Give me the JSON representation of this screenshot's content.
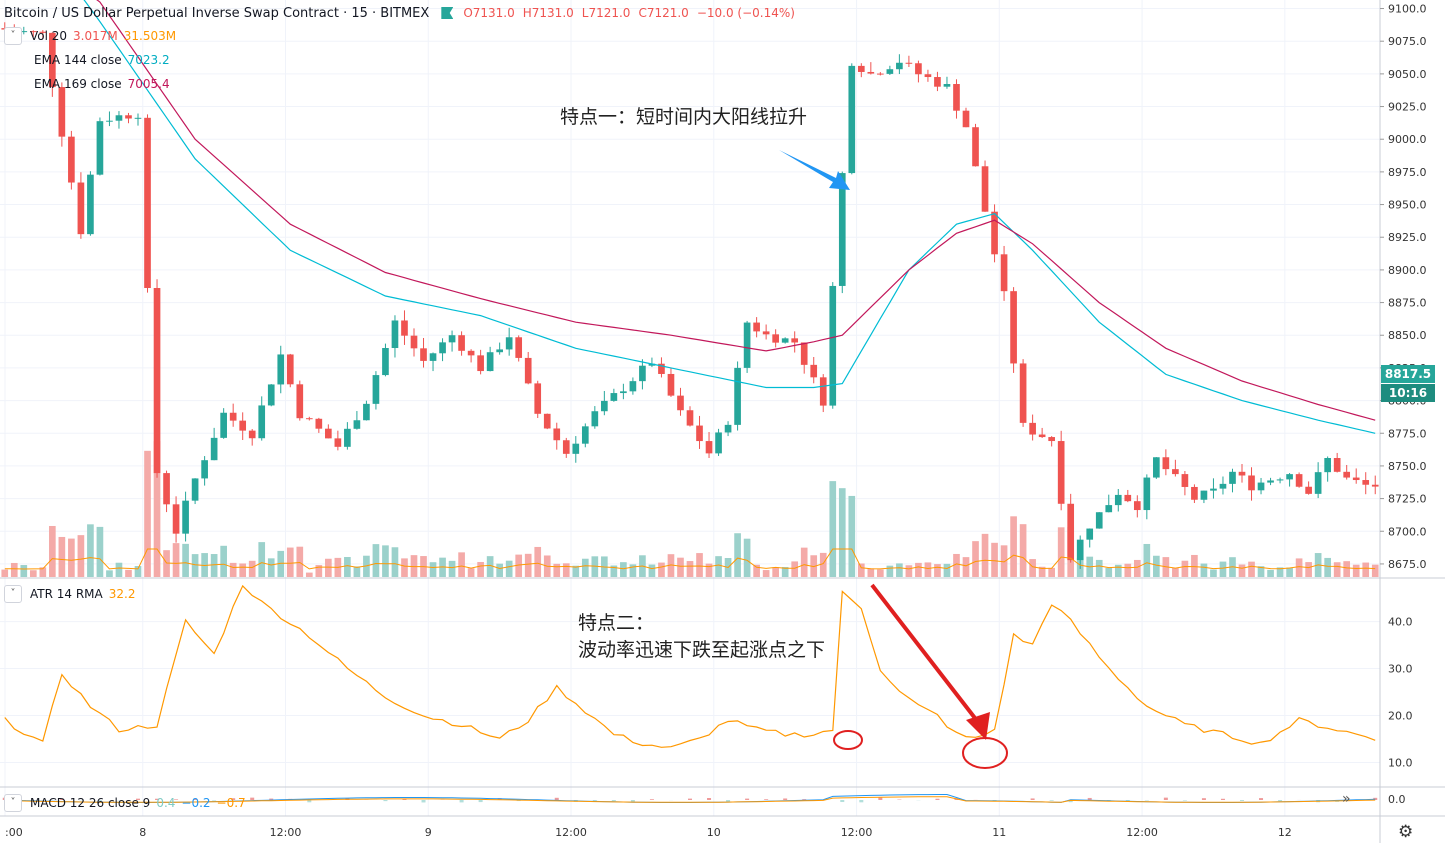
{
  "header": {
    "symbol_title": "Bitcoin / US Dollar Perpetual Inverse Swap Contract · 15 · BITMEX",
    "ohlc": {
      "o": "O7131.0",
      "h": "H7131.0",
      "l": "L7121.0",
      "c": "C7121.0",
      "chg": "−10.0 (−0.14%)"
    }
  },
  "legends": {
    "vol": {
      "name": "Vol 20",
      "v1": "3.017M",
      "v2": "31.503M",
      "c1": "#ef5350",
      "c2": "#ff9800"
    },
    "ema144": {
      "name": "EMA 144 close",
      "value": "7023.2",
      "color": "#00bcd4"
    },
    "ema169": {
      "name": "EMA 169 close",
      "value": "7005.4",
      "color": "#c2185b"
    },
    "atr": {
      "name": "ATR 14 RMA",
      "value": "32.2",
      "color": "#ff9800"
    },
    "macd": {
      "name": "MACD 12 26 close 9",
      "v1": "0.4",
      "v2": "−0.2",
      "v3": "−0.7",
      "c1": "#80cbc4",
      "c2": "#2196f3",
      "c3": "#ff9800"
    }
  },
  "annotations": {
    "note1": "特点一：短时间内大阳线拉升",
    "note2_l1": "特点二：",
    "note2_l2": "波动率迅速下跌至起涨点之下"
  },
  "price_tags": {
    "last_price": "8817.5",
    "countdown": "10:16"
  },
  "colors": {
    "up": "#26a69a",
    "down": "#ef5350",
    "ema144": "#00bcd4",
    "ema169": "#c2185b",
    "atr": "#ff9800",
    "annot_arrow_blue": "#2196f3",
    "annot_arrow_red": "#e02020"
  },
  "chart_data": [
    {
      "type": "candlestick",
      "title": "Bitcoin / US Dollar Perpetual Inverse Swap Contract",
      "interval": "15",
      "price_ticks": [
        "9100.0",
        "9075.0",
        "9050.0",
        "9025.0",
        "9000.0",
        "8975.0",
        "8950.0",
        "8925.0",
        "8900.0",
        "8875.0",
        "8850.0",
        "8825.0",
        "8800.0",
        "8775.0",
        "8750.0",
        "8725.0",
        "8700.0",
        "8675.0"
      ],
      "ylim": [
        8665,
        9105
      ],
      "time_ticks": [
        ":00",
        "8",
        "12:00",
        "9",
        "12:00",
        "10",
        "12:00",
        "11",
        "12:00",
        "12"
      ],
      "price_path": [
        [
          0,
          9085
        ],
        [
          5,
          9080
        ],
        [
          9,
          8930
        ],
        [
          11,
          9015
        ],
        [
          15,
          9020
        ],
        [
          17,
          8745
        ],
        [
          19,
          8700
        ],
        [
          21,
          8740
        ],
        [
          24,
          8790
        ],
        [
          27,
          8775
        ],
        [
          30,
          8835
        ],
        [
          32,
          8790
        ],
        [
          36,
          8765
        ],
        [
          39,
          8800
        ],
        [
          42,
          8860
        ],
        [
          45,
          8830
        ],
        [
          48,
          8850
        ],
        [
          51,
          8825
        ],
        [
          54,
          8850
        ],
        [
          57,
          8790
        ],
        [
          60,
          8760
        ],
        [
          63,
          8790
        ],
        [
          66,
          8810
        ],
        [
          69,
          8830
        ],
        [
          72,
          8790
        ],
        [
          75,
          8760
        ],
        [
          77,
          8785
        ],
        [
          79,
          8860
        ],
        [
          81,
          8850
        ],
        [
          84,
          8845
        ],
        [
          87,
          8800
        ],
        [
          90,
          9060
        ],
        [
          92,
          9050
        ],
        [
          95,
          9060
        ],
        [
          97,
          9050
        ],
        [
          100,
          9040
        ],
        [
          102,
          9010
        ],
        [
          104,
          8945
        ],
        [
          106,
          8880
        ],
        [
          108,
          8780
        ],
        [
          111,
          8770
        ],
        [
          113,
          8680
        ],
        [
          115,
          8705
        ],
        [
          118,
          8730
        ],
        [
          120,
          8720
        ],
        [
          122,
          8755
        ],
        [
          124,
          8740
        ],
        [
          126,
          8725
        ],
        [
          128,
          8730
        ],
        [
          130,
          8745
        ],
        [
          132,
          8735
        ],
        [
          134,
          8740
        ],
        [
          136,
          8745
        ],
        [
          138,
          8730
        ],
        [
          140,
          8755
        ],
        [
          142,
          8740
        ],
        [
          144,
          8735
        ]
      ],
      "ema144_path": [
        [
          4,
          9150
        ],
        [
          10,
          9090
        ],
        [
          20,
          8985
        ],
        [
          30,
          8915
        ],
        [
          40,
          8880
        ],
        [
          50,
          8865
        ],
        [
          60,
          8840
        ],
        [
          70,
          8825
        ],
        [
          80,
          8810
        ],
        [
          85,
          8810
        ],
        [
          88,
          8813
        ],
        [
          95,
          8900
        ],
        [
          100,
          8935
        ],
        [
          104,
          8943
        ],
        [
          108,
          8915
        ],
        [
          115,
          8860
        ],
        [
          122,
          8820
        ],
        [
          130,
          8800
        ],
        [
          138,
          8785
        ],
        [
          144,
          8775
        ]
      ],
      "ema169_path": [
        [
          4,
          9160
        ],
        [
          10,
          9105
        ],
        [
          20,
          9000
        ],
        [
          30,
          8935
        ],
        [
          40,
          8898
        ],
        [
          50,
          8878
        ],
        [
          60,
          8860
        ],
        [
          70,
          8850
        ],
        [
          80,
          8838
        ],
        [
          85,
          8845
        ],
        [
          88,
          8850
        ],
        [
          95,
          8900
        ],
        [
          100,
          8928
        ],
        [
          104,
          8938
        ],
        [
          108,
          8920
        ],
        [
          115,
          8875
        ],
        [
          122,
          8840
        ],
        [
          130,
          8815
        ],
        [
          138,
          8797
        ],
        [
          144,
          8785
        ]
      ],
      "volume_note": "volume histogram at bottom of price pane, moving average orange"
    },
    {
      "type": "line",
      "name": "ATR 14 RMA",
      "y_ticks": [
        "40.0",
        "30.0",
        "20.0",
        "10.0"
      ],
      "ylim": [
        5,
        48
      ],
      "path": [
        [
          0,
          19
        ],
        [
          4,
          14
        ],
        [
          6,
          29
        ],
        [
          9,
          22
        ],
        [
          12,
          17
        ],
        [
          16,
          18
        ],
        [
          19,
          40
        ],
        [
          22,
          33
        ],
        [
          25,
          48
        ],
        [
          27,
          44
        ],
        [
          32,
          37
        ],
        [
          36,
          30
        ],
        [
          40,
          24
        ],
        [
          44,
          20
        ],
        [
          48,
          18
        ],
        [
          52,
          15
        ],
        [
          55,
          19
        ],
        [
          58,
          26
        ],
        [
          61,
          21
        ],
        [
          64,
          16
        ],
        [
          67,
          14
        ],
        [
          70,
          13
        ],
        [
          73,
          15
        ],
        [
          76,
          19
        ],
        [
          79,
          17
        ],
        [
          82,
          16
        ],
        [
          85,
          16
        ],
        [
          87,
          17
        ],
        [
          88,
          46
        ],
        [
          90,
          43
        ],
        [
          92,
          30
        ],
        [
          94,
          25
        ],
        [
          96,
          22
        ],
        [
          98,
          20
        ],
        [
          100,
          16
        ],
        [
          102,
          15
        ],
        [
          104,
          17
        ],
        [
          106,
          37
        ],
        [
          108,
          35
        ],
        [
          110,
          44
        ],
        [
          112,
          40
        ],
        [
          116,
          30
        ],
        [
          120,
          22
        ],
        [
          124,
          18
        ],
        [
          128,
          16
        ],
        [
          132,
          14
        ],
        [
          136,
          19
        ],
        [
          140,
          17
        ],
        [
          144,
          15
        ]
      ]
    },
    {
      "type": "line",
      "name": "MACD 12 26 close 9",
      "y_ticks": [
        "0.0"
      ]
    }
  ]
}
